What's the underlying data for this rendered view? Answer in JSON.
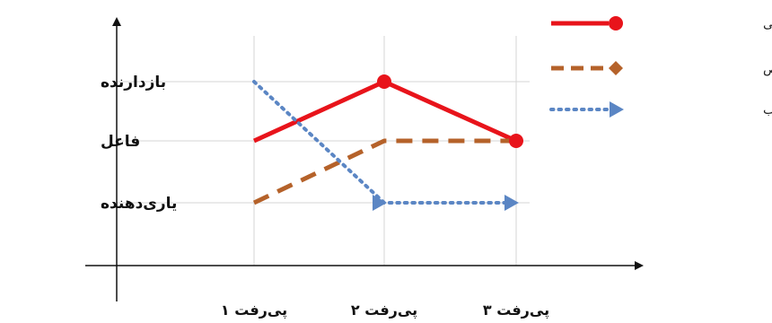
{
  "chart_data": {
    "type": "line",
    "title": "",
    "xlabel": "",
    "ylabel": "",
    "categories": [
      "پی‌رفت ۱",
      "پی‌رفت ۲",
      "پی‌رفت ۳"
    ],
    "y_levels": [
      "یاری‌دهنده",
      "فاعل",
      "بازدارنده"
    ],
    "ylim": [
      0,
      3.5
    ],
    "grid": true,
    "legend_position": "top-right",
    "series": [
      {
        "name": "رزمندگان اخراجی",
        "values": [
          2,
          3,
          2
        ],
        "color": "#e8141b",
        "style": "solid",
        "marker": "circle",
        "marker_at": [
          2,
          3
        ]
      },
      {
        "name": "رزمندگان مخلص",
        "values": [
          1,
          2,
          2
        ],
        "color": "#b5622a",
        "style": "dashed",
        "marker": "diamond",
        "marker_at": []
      },
      {
        "name": "رزمندگان فرصت‌طلب",
        "values": [
          3,
          1,
          1
        ],
        "color": "#5b86c4",
        "style": "dotted",
        "marker": "triangle",
        "marker_at": [
          2,
          3
        ]
      }
    ]
  }
}
